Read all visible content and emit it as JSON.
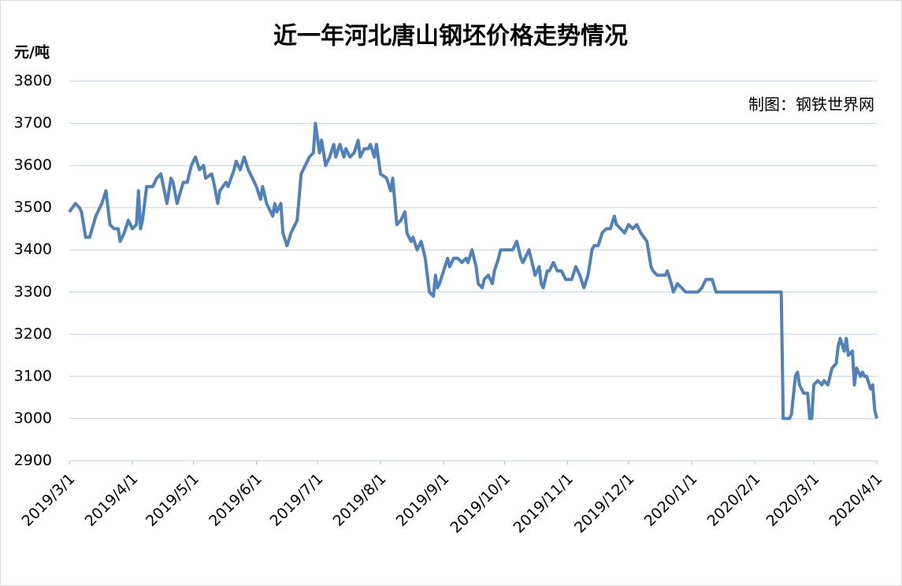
{
  "chart_data": {
    "type": "line",
    "title": "近一年河北唐山钢坯价格走势情况",
    "y_unit": "元/吨",
    "annotation": "制图：钢铁世界网",
    "x": [
      "2019/3/1",
      "2019/3/4",
      "2019/3/6",
      "2019/3/7",
      "2019/3/9",
      "2019/3/11",
      "2019/3/14",
      "2019/3/17",
      "2019/3/19",
      "2019/3/21",
      "2019/3/23",
      "2019/3/25",
      "2019/3/26",
      "2019/3/28",
      "2019/3/30",
      "2019/4/1",
      "2019/4/3",
      "2019/4/4",
      "2019/4/5",
      "2019/4/6",
      "2019/4/8",
      "2019/4/11",
      "2019/4/13",
      "2019/4/15",
      "2019/4/18",
      "2019/4/20",
      "2019/4/21",
      "2019/4/23",
      "2019/4/26",
      "2019/4/28",
      "2019/4/30",
      "2019/5/2",
      "2019/5/4",
      "2019/5/6",
      "2019/5/7",
      "2019/5/10",
      "2019/5/11",
      "2019/5/13",
      "2019/5/14",
      "2019/5/17",
      "2019/5/18",
      "2019/5/21",
      "2019/5/22",
      "2019/5/24",
      "2019/5/26",
      "2019/5/28",
      "2019/5/30",
      "2019/6/1",
      "2019/6/3",
      "2019/6/4",
      "2019/6/6",
      "2019/6/7",
      "2019/6/9",
      "2019/6/10",
      "2019/6/11",
      "2019/6/13",
      "2019/6/14",
      "2019/6/16",
      "2019/6/18",
      "2019/6/20",
      "2019/6/21",
      "2019/6/23",
      "2019/6/25",
      "2019/6/27",
      "2019/6/29",
      "2019/6/30",
      "2019/7/2",
      "2019/7/3",
      "2019/7/5",
      "2019/7/7",
      "2019/7/9",
      "2019/7/10",
      "2019/7/12",
      "2019/7/14",
      "2019/7/15",
      "2019/7/17",
      "2019/7/19",
      "2019/7/21",
      "2019/7/22",
      "2019/7/24",
      "2019/7/26",
      "2019/7/27",
      "2019/7/29",
      "2019/7/30",
      "2019/8/1",
      "2019/8/4",
      "2019/8/6",
      "2019/8/7",
      "2019/8/9",
      "2019/8/11",
      "2019/8/13",
      "2019/8/14",
      "2019/8/16",
      "2019/8/17",
      "2019/8/19",
      "2019/8/21",
      "2019/8/23",
      "2019/8/25",
      "2019/8/27",
      "2019/8/28",
      "2019/8/29",
      "2019/8/30",
      "2019/9/1",
      "2019/9/3",
      "2019/9/4",
      "2019/9/6",
      "2019/9/8",
      "2019/9/10",
      "2019/9/12",
      "2019/9/13",
      "2019/9/15",
      "2019/9/17",
      "2019/9/18",
      "2019/9/20",
      "2019/9/21",
      "2019/9/23",
      "2019/9/25",
      "2019/9/26",
      "2019/9/28",
      "2019/9/29",
      "2019/10/3",
      "2019/10/5",
      "2019/10/7",
      "2019/10/9",
      "2019/10/10",
      "2019/10/12",
      "2019/10/13",
      "2019/10/15",
      "2019/10/16",
      "2019/10/18",
      "2019/10/19",
      "2019/10/20",
      "2019/10/22",
      "2019/10/23",
      "2019/10/25",
      "2019/10/27",
      "2019/10/29",
      "2019/10/31",
      "2019/11/3",
      "2019/11/5",
      "2019/11/7",
      "2019/11/9",
      "2019/11/11",
      "2019/11/13",
      "2019/11/14",
      "2019/11/16",
      "2019/11/18",
      "2019/11/20",
      "2019/11/22",
      "2019/11/24",
      "2019/11/25",
      "2019/11/27",
      "2019/11/29",
      "2019/12/1",
      "2019/12/3",
      "2019/12/5",
      "2019/12/7",
      "2019/12/10",
      "2019/12/12",
      "2019/12/13",
      "2019/12/15",
      "2019/12/19",
      "2019/12/20",
      "2019/12/22",
      "2019/12/23",
      "2019/12/25",
      "2019/12/27",
      "2019/12/29",
      "2020/1/4",
      "2020/1/6",
      "2020/1/8",
      "2020/1/11",
      "2020/1/13",
      "2020/2/14",
      "2020/2/15",
      "2020/2/18",
      "2020/2/19",
      "2020/2/21",
      "2020/2/22",
      "2020/2/23",
      "2020/2/25",
      "2020/2/27",
      "2020/2/28",
      "2020/2/29",
      "2020/3/1",
      "2020/3/3",
      "2020/3/5",
      "2020/3/6",
      "2020/3/8",
      "2020/3/10",
      "2020/3/12",
      "2020/3/13",
      "2020/3/14",
      "2020/3/16",
      "2020/3/17",
      "2020/3/18",
      "2020/3/20",
      "2020/3/21",
      "2020/3/22",
      "2020/3/24",
      "2020/3/25",
      "2020/3/26",
      "2020/3/27",
      "2020/3/29",
      "2020/3/30",
      "2020/3/31",
      "2020/4/1"
    ],
    "series": [
      {
        "name": "钢坯价格",
        "color": "#4f81bd",
        "values": [
          3490,
          3510,
          3500,
          3490,
          3430,
          3430,
          3480,
          3510,
          3540,
          3460,
          3450,
          3450,
          3420,
          3440,
          3470,
          3450,
          3460,
          3540,
          3450,
          3470,
          3550,
          3550,
          3570,
          3580,
          3510,
          3570,
          3560,
          3510,
          3560,
          3560,
          3600,
          3620,
          3590,
          3600,
          3570,
          3580,
          3560,
          3510,
          3540,
          3560,
          3550,
          3590,
          3610,
          3590,
          3620,
          3590,
          3570,
          3550,
          3520,
          3550,
          3510,
          3500,
          3480,
          3510,
          3490,
          3510,
          3440,
          3410,
          3440,
          3460,
          3470,
          3580,
          3600,
          3620,
          3630,
          3700,
          3630,
          3660,
          3600,
          3620,
          3650,
          3620,
          3650,
          3620,
          3640,
          3620,
          3630,
          3660,
          3620,
          3640,
          3640,
          3650,
          3620,
          3650,
          3580,
          3570,
          3540,
          3570,
          3460,
          3470,
          3490,
          3440,
          3420,
          3430,
          3400,
          3420,
          3380,
          3300,
          3290,
          3340,
          3310,
          3320,
          3350,
          3380,
          3360,
          3380,
          3380,
          3370,
          3380,
          3370,
          3400,
          3360,
          3320,
          3310,
          3330,
          3340,
          3320,
          3350,
          3380,
          3400,
          3400,
          3400,
          3420,
          3380,
          3370,
          3390,
          3400,
          3360,
          3340,
          3360,
          3320,
          3310,
          3350,
          3350,
          3370,
          3350,
          3350,
          3330,
          3330,
          3360,
          3340,
          3310,
          3340,
          3400,
          3410,
          3410,
          3440,
          3450,
          3450,
          3480,
          3460,
          3450,
          3440,
          3460,
          3450,
          3460,
          3440,
          3420,
          3360,
          3350,
          3340,
          3340,
          3350,
          3320,
          3300,
          3320,
          3310,
          3300,
          3300,
          3310,
          3330,
          3330,
          3300,
          3300,
          3000,
          3000,
          3010,
          3100,
          3110,
          3080,
          3060,
          3060,
          3000,
          3000,
          3080,
          3090,
          3080,
          3090,
          3080,
          3120,
          3130,
          3170,
          3190,
          3160,
          3190,
          3150,
          3160,
          3080,
          3120,
          3100,
          3110,
          3100,
          3100,
          3070,
          3080,
          3020,
          3000
        ]
      }
    ],
    "xlim": [
      "2019/3/1",
      "2020/4/1"
    ],
    "xticks": [
      "2019/3/1",
      "2019/4/1",
      "2019/5/1",
      "2019/6/1",
      "2019/7/1",
      "2019/8/1",
      "2019/9/1",
      "2019/10/1",
      "2019/11/1",
      "2019/12/1",
      "2020/1/1",
      "2020/2/1",
      "2020/3/1",
      "2020/4/1"
    ],
    "ylim": [
      2900,
      3800
    ],
    "yticks": [
      2900,
      3000,
      3100,
      3200,
      3300,
      3400,
      3500,
      3600,
      3700,
      3800
    ],
    "grid": true
  }
}
